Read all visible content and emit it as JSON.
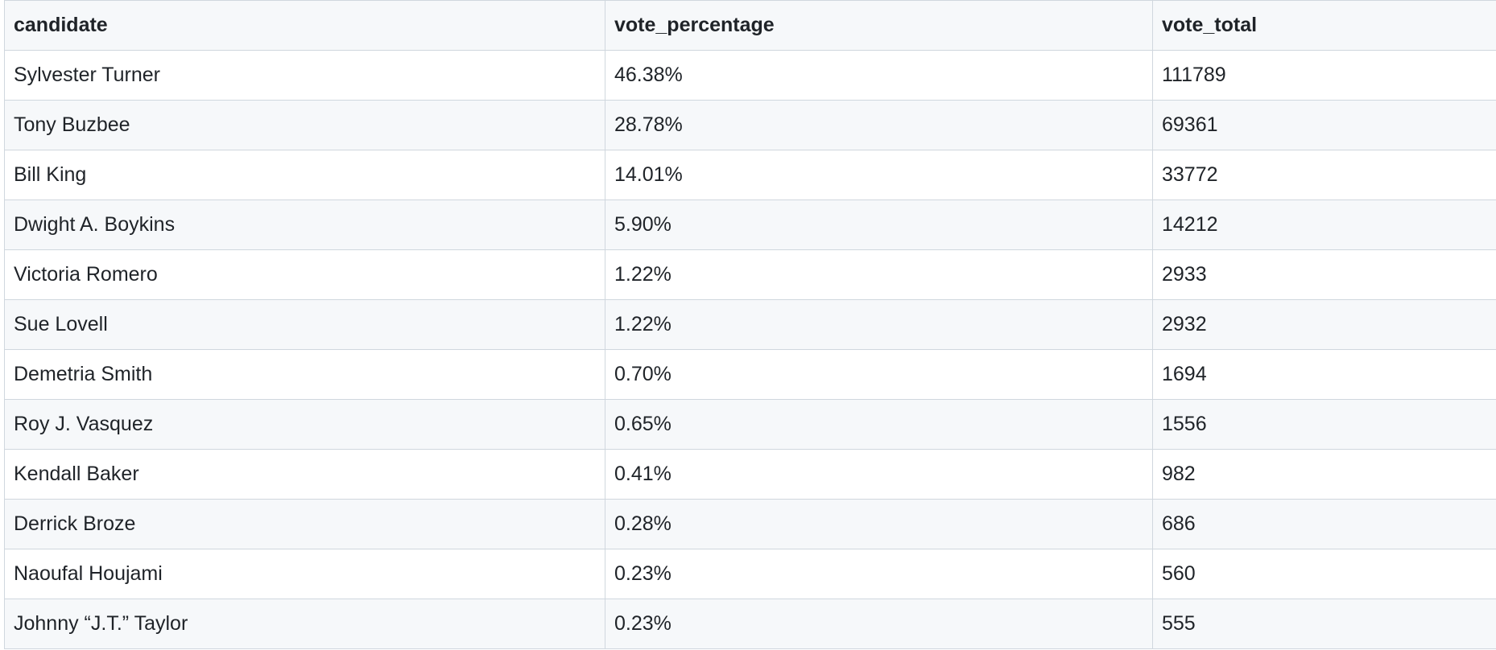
{
  "table": {
    "columns": [
      "candidate",
      "vote_percentage",
      "vote_total"
    ],
    "rows": [
      [
        "Sylvester Turner",
        "46.38%",
        "111789"
      ],
      [
        "Tony Buzbee",
        "28.78%",
        "69361"
      ],
      [
        "Bill King",
        "14.01%",
        "33772"
      ],
      [
        "Dwight A. Boykins",
        "5.90%",
        "14212"
      ],
      [
        "Victoria Romero",
        "1.22%",
        "2933"
      ],
      [
        "Sue Lovell",
        "1.22%",
        "2932"
      ],
      [
        "Demetria Smith",
        "0.70%",
        "1694"
      ],
      [
        "Roy J. Vasquez",
        "0.65%",
        "1556"
      ],
      [
        "Kendall Baker",
        "0.41%",
        "982"
      ],
      [
        "Derrick Broze",
        "0.28%",
        "686"
      ],
      [
        "Naoufal Houjami",
        "0.23%",
        "560"
      ],
      [
        "Johnny “J.T.” Taylor",
        "0.23%",
        "555"
      ]
    ]
  }
}
